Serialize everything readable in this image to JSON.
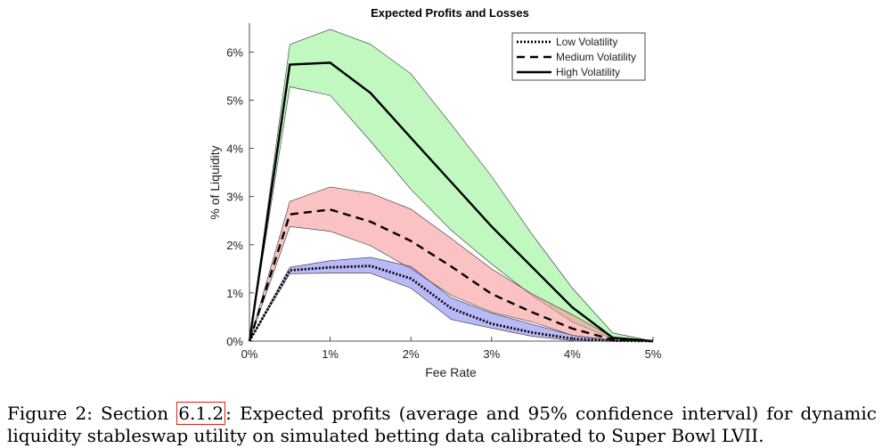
{
  "chart_data": {
    "type": "line",
    "title": "Expected Profits and Losses",
    "xlabel": "Fee Rate",
    "ylabel": "% of Liquidity",
    "xlim": [
      0,
      5
    ],
    "ylim": [
      0,
      6.6
    ],
    "x_ticks": [
      0,
      1,
      2,
      3,
      4,
      5
    ],
    "x_tick_labels": [
      "0%",
      "1%",
      "2%",
      "3%",
      "4%",
      "5%"
    ],
    "y_ticks": [
      0,
      1,
      2,
      3,
      4,
      5,
      6
    ],
    "y_tick_labels": [
      "0%",
      "1%",
      "2%",
      "3%",
      "4%",
      "5%",
      "6%"
    ],
    "grid": false,
    "legend_position": "top-right",
    "x": [
      0,
      0.5,
      1,
      1.5,
      2,
      2.5,
      3,
      3.5,
      4,
      4.5,
      5
    ],
    "series": [
      {
        "name": "Low Volatility",
        "line_style": "dotted",
        "band_color": "#8080f0",
        "values": [
          0,
          1.47,
          1.53,
          1.56,
          1.3,
          0.68,
          0.36,
          0.18,
          0.05,
          0.01,
          0
        ],
        "lower": [
          0,
          1.4,
          1.41,
          1.41,
          1.1,
          0.45,
          0.27,
          0.1,
          0.01,
          0,
          0
        ],
        "upper": [
          0,
          1.53,
          1.67,
          1.74,
          1.55,
          0.9,
          0.58,
          0.35,
          0.12,
          0.02,
          0
        ]
      },
      {
        "name": "Medium Volatility",
        "line_style": "dashed",
        "band_color": "#f59090",
        "values": [
          0,
          2.63,
          2.73,
          2.48,
          2.08,
          1.55,
          0.98,
          0.6,
          0.26,
          0.03,
          0
        ],
        "lower": [
          0,
          2.38,
          2.28,
          1.98,
          1.5,
          0.95,
          0.6,
          0.4,
          0.12,
          0.01,
          0
        ],
        "upper": [
          0,
          2.9,
          3.2,
          3.07,
          2.74,
          2.13,
          1.5,
          0.98,
          0.55,
          0.08,
          0
        ]
      },
      {
        "name": "High Volatility",
        "line_style": "solid",
        "band_color": "#8cf28c",
        "values": [
          0,
          5.74,
          5.78,
          5.15,
          4.22,
          3.3,
          2.38,
          1.54,
          0.7,
          0.07,
          0
        ],
        "lower": [
          0,
          5.28,
          5.1,
          4.15,
          3.15,
          2.3,
          1.6,
          0.95,
          0.4,
          0.05,
          0
        ],
        "upper": [
          0,
          6.16,
          6.47,
          6.16,
          5.55,
          4.5,
          3.42,
          2.22,
          1.1,
          0.17,
          0
        ]
      }
    ]
  },
  "caption": {
    "prefix": "Figure 2: Section ",
    "ref": "6.1.2",
    "text": ": Expected profits (average and 95% confidence interval) for dynamic liquidity stableswap utility on simulated betting data calibrated to Super Bowl LVII."
  }
}
